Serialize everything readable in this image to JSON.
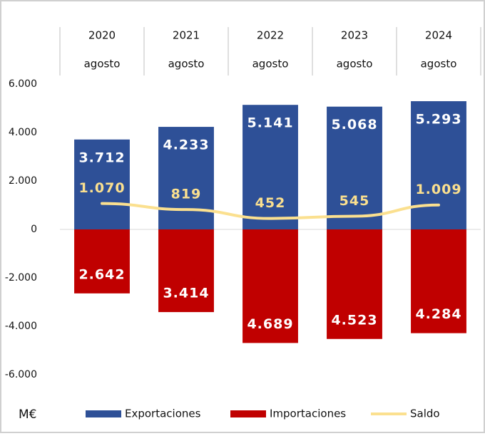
{
  "chart_data": {
    "type": "bar",
    "y_label": "M€",
    "categories": [
      "2020",
      "2021",
      "2022",
      "2023",
      "2024"
    ],
    "category_sublabels": [
      "agosto",
      "agosto",
      "agosto",
      "agosto",
      "agosto"
    ],
    "series": [
      {
        "name": "Exportaciones",
        "type": "bar",
        "color": "#2e5097",
        "values": [
          3712,
          4233,
          5141,
          5068,
          5293
        ],
        "value_labels": [
          "3.712",
          "4.233",
          "5.141",
          "5.068",
          "5.293"
        ]
      },
      {
        "name": "Importaciones",
        "type": "bar",
        "color": "#c00000",
        "values": [
          -2642,
          -3414,
          -4689,
          -4523,
          -4284
        ],
        "value_labels": [
          "2.642",
          "3.414",
          "4.689",
          "4.523",
          "4.284"
        ]
      },
      {
        "name": "Saldo",
        "type": "line",
        "color": "#fbe08f",
        "values": [
          1070,
          819,
          452,
          545,
          1009
        ],
        "value_labels": [
          "1.070",
          "819",
          "452",
          "545",
          "1.009"
        ]
      }
    ],
    "ylim": [
      -6000,
      6000
    ],
    "yticks": [
      {
        "value": 6000,
        "label": "6.000"
      },
      {
        "value": 4000,
        "label": "4.000"
      },
      {
        "value": 2000,
        "label": "2.000"
      },
      0,
      {
        "value": -2000,
        "label": "-2.000"
      },
      {
        "value": -4000,
        "label": "-4.000"
      },
      {
        "value": -6000,
        "label": "-6.000"
      }
    ],
    "legend": "bottom"
  }
}
